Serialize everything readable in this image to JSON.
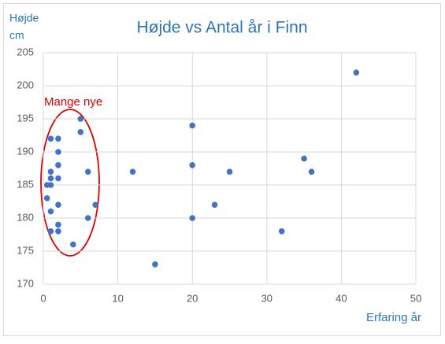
{
  "chart_data": {
    "type": "scatter",
    "title": "Højde vs Antal år i Finn",
    "y_label": [
      "Højde",
      "cm"
    ],
    "x_label": "Erfaring år",
    "annotation": "Mange nye",
    "color": "#4472c4",
    "grid": true,
    "xlim": [
      0,
      50
    ],
    "xticks": [
      0,
      10,
      20,
      30,
      40,
      50
    ],
    "ylim": [
      170,
      205
    ],
    "yticks": [
      170,
      175,
      180,
      185,
      190,
      195,
      200,
      205
    ],
    "series": [
      {
        "x": [
          42,
          5,
          20,
          5,
          1,
          2,
          2,
          35,
          2,
          20,
          1,
          6,
          12,
          25,
          36,
          1,
          2,
          0.5,
          1,
          0.5,
          7,
          2,
          23,
          1,
          6,
          20,
          2,
          1,
          2,
          32,
          4,
          15
        ],
        "values": [
          202,
          195,
          194,
          193,
          192,
          192,
          190,
          189,
          188,
          188,
          187,
          187,
          187,
          187,
          187,
          186,
          186,
          185,
          185,
          183,
          182,
          182,
          182,
          181,
          180,
          180,
          179,
          178,
          178,
          178,
          176,
          173
        ]
      }
    ]
  }
}
